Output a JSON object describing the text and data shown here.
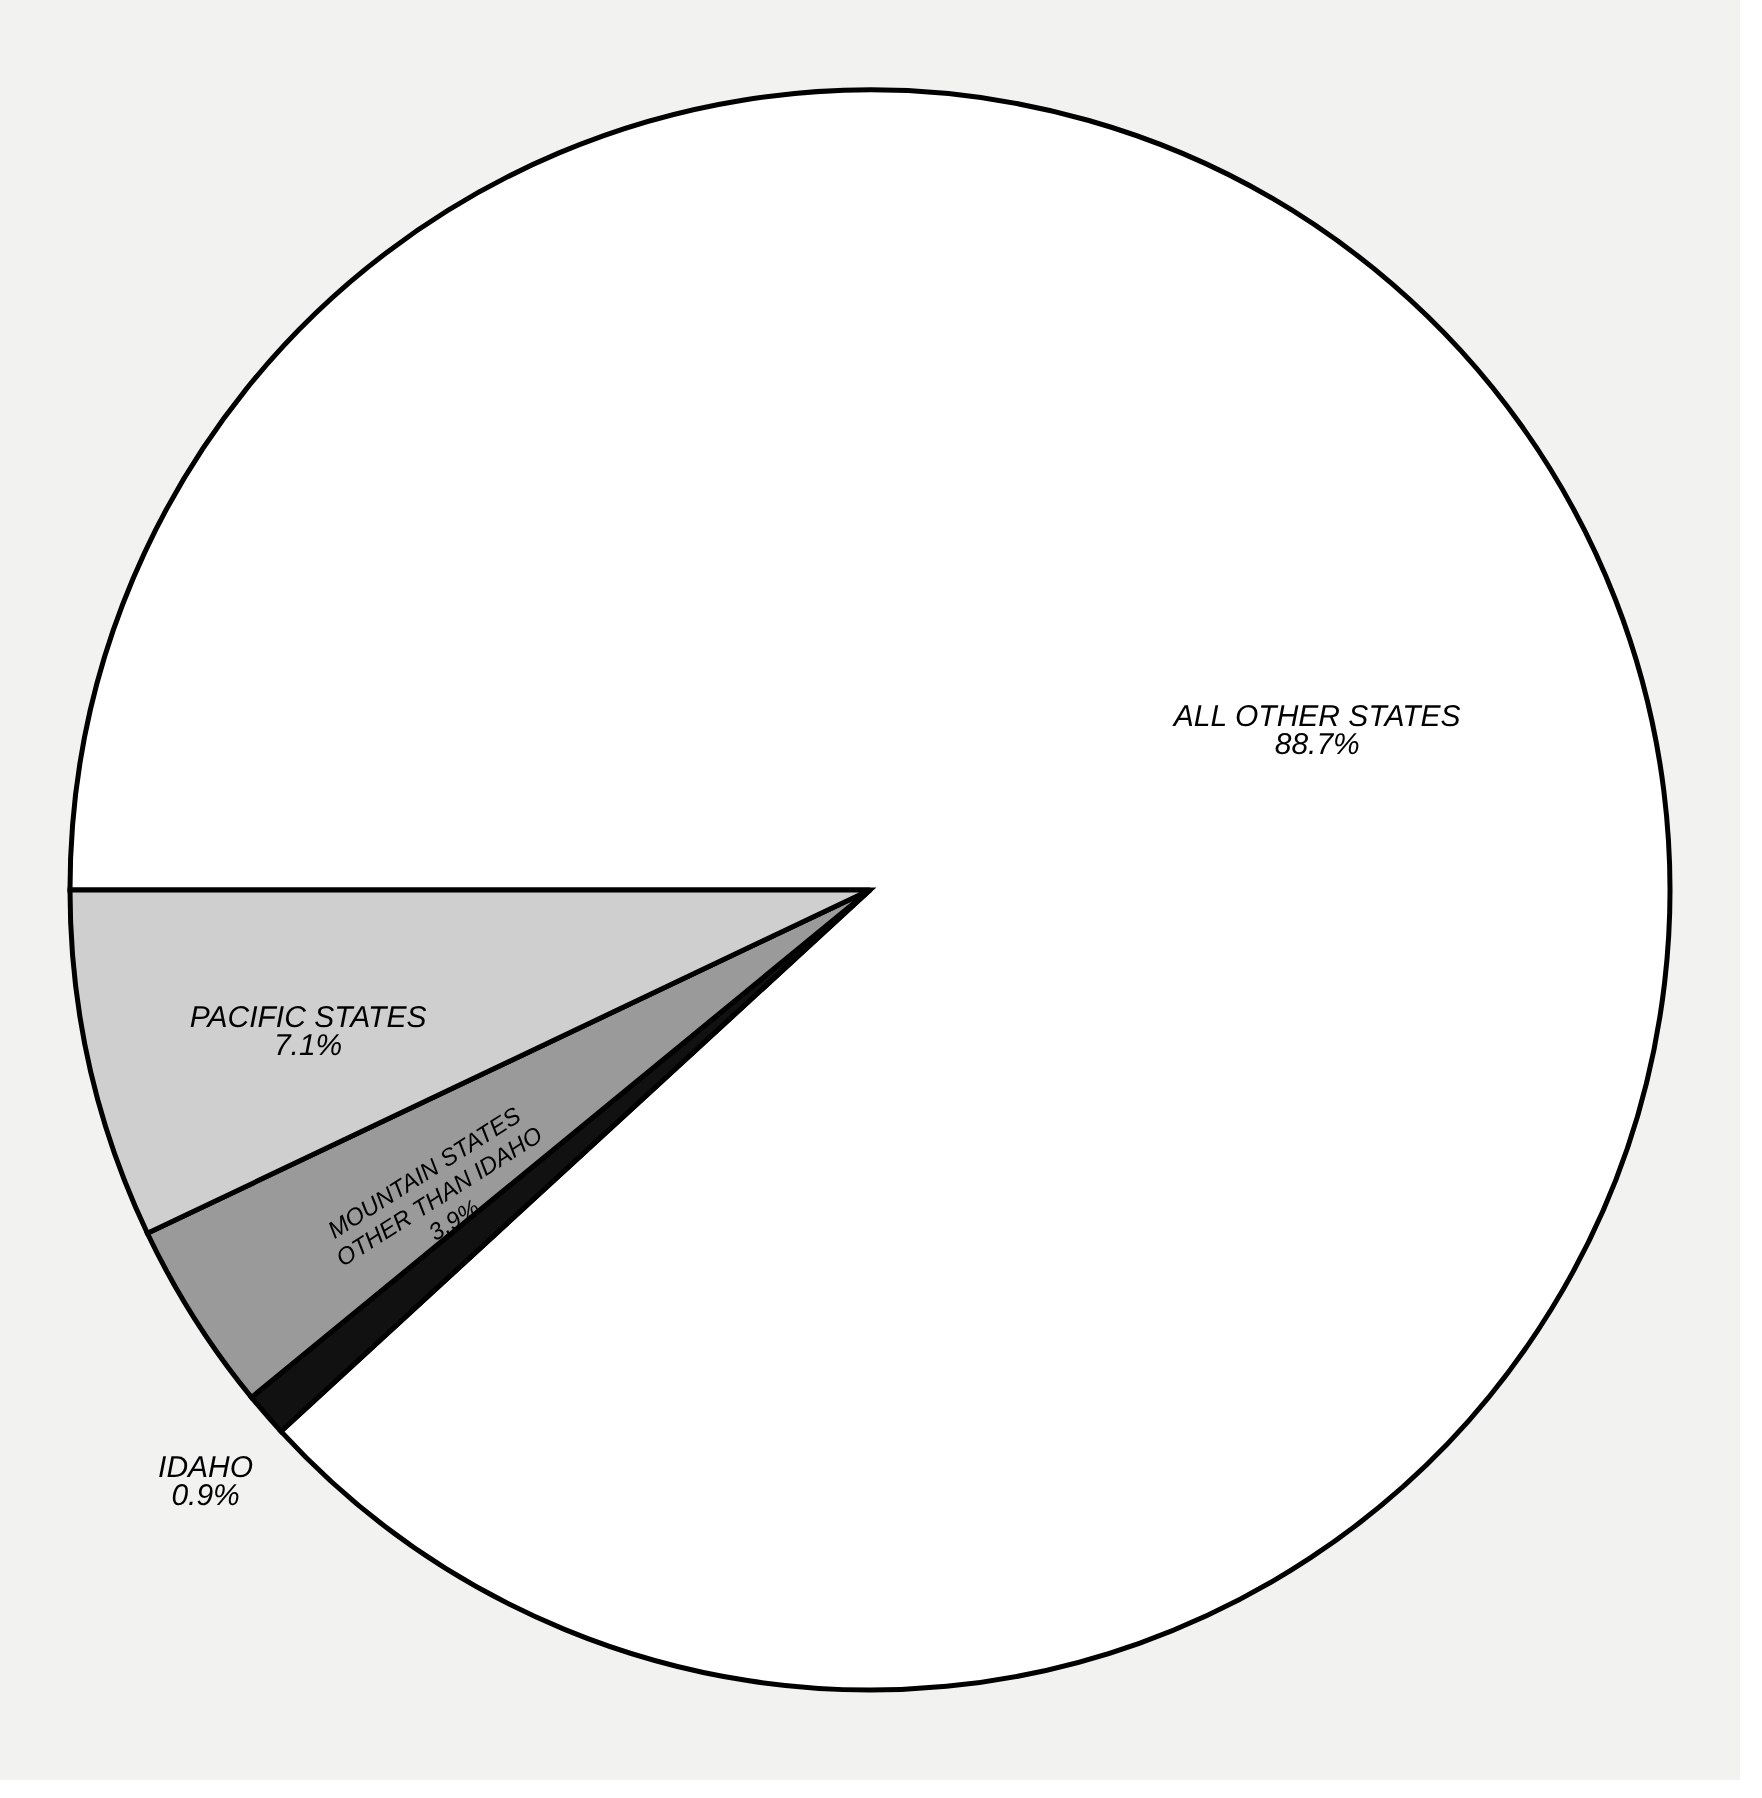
{
  "chart_data": {
    "type": "pie",
    "categories": [
      "ALL OTHER STATES",
      "IDAHO",
      "MOUNTAIN STATES OTHER THAN IDAHO",
      "PACIFIC STATES"
    ],
    "values": [
      88.7,
      0.9,
      3.9,
      7.1
    ],
    "value_labels": [
      "88.7%",
      "0.9%",
      "3.9%",
      "7.1%"
    ],
    "colors": [
      "#ffffff",
      "#111111",
      "#9a9a9a",
      "#cfcfcf"
    ],
    "legend": false
  }
}
